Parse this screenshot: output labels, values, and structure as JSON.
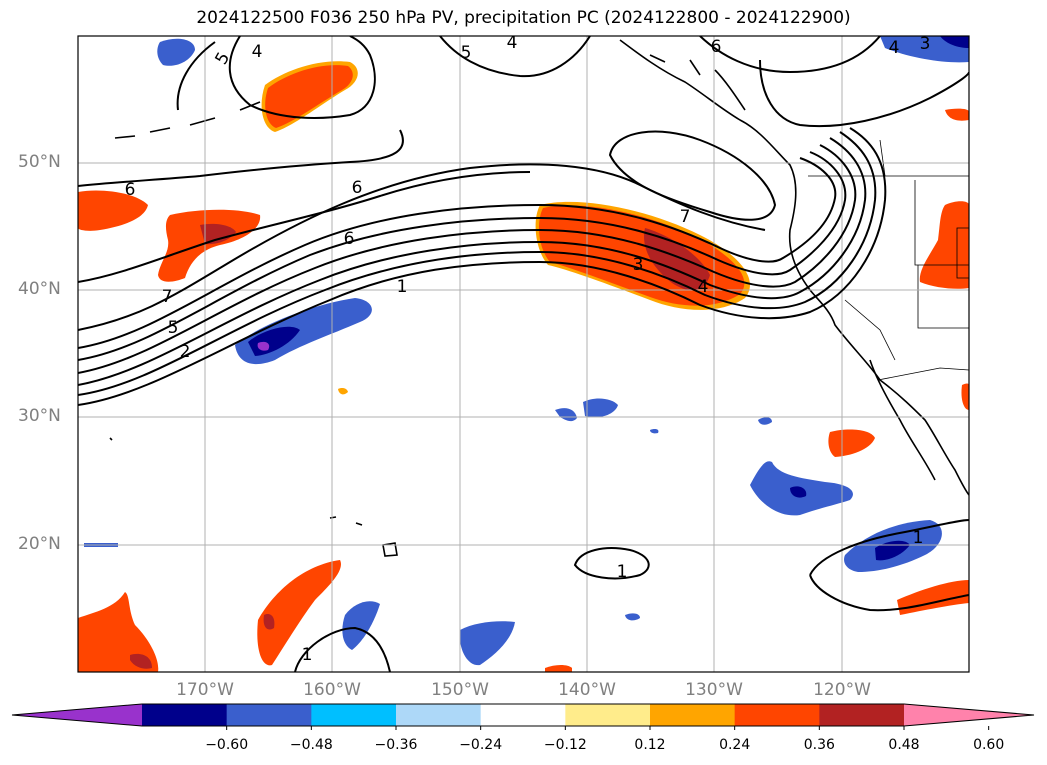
{
  "title": "2024122500 F036 250 hPa PV, precipitation PC (2024122800 - 2024122900)",
  "lat_labels": [
    "50°N",
    "40°N",
    "30°N",
    "20°N"
  ],
  "lon_labels": [
    "170°W",
    "160°W",
    "150°W",
    "140°W",
    "130°W",
    "120°W"
  ],
  "colorbar": {
    "ticks": [
      "−0.60",
      "−0.48",
      "−0.36",
      "−0.24",
      "−0.12",
      "0.12",
      "0.24",
      "0.36",
      "0.48",
      "0.60"
    ],
    "colors": [
      "#9932cc",
      "#00008b",
      "#3a5fcd",
      "#00bfff",
      "#add8f8",
      "#ffffff",
      "#ffec8b",
      "#ffa500",
      "#ff4500",
      "#b22222",
      "#ff82ab"
    ]
  },
  "contour_labels": [
    "5",
    "4",
    "5",
    "4",
    "6",
    "4",
    "3",
    "6",
    "6",
    "6",
    "7",
    "7",
    "5",
    "2",
    "1",
    "3",
    "4",
    "1",
    "1",
    "1"
  ],
  "colors": {
    "coastline": "#000000",
    "grid": "#b0b0b0",
    "contour": "#000000"
  }
}
